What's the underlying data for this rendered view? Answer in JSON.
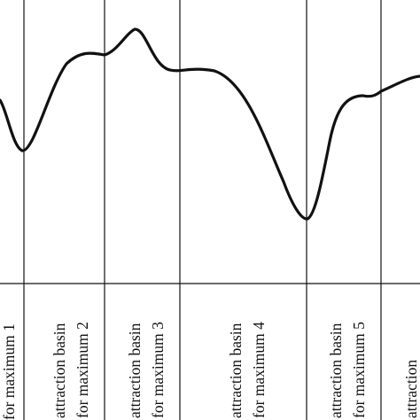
{
  "figure": {
    "basin_labels": [
      {
        "line1": "",
        "line2": "for maximum 1"
      },
      {
        "line1": "attraction basin",
        "line2": "for maximum 2"
      },
      {
        "line1": "attraction basin",
        "line2": "for maximum 3"
      },
      {
        "line1": "attraction basin",
        "line2": "for maximum 4"
      },
      {
        "line1": "attraction basin",
        "line2": "for maximum 5"
      },
      {
        "line1": "attraction",
        "line2": ""
      }
    ],
    "colors": {
      "ink": "#111111",
      "background": "#ffffff"
    }
  }
}
